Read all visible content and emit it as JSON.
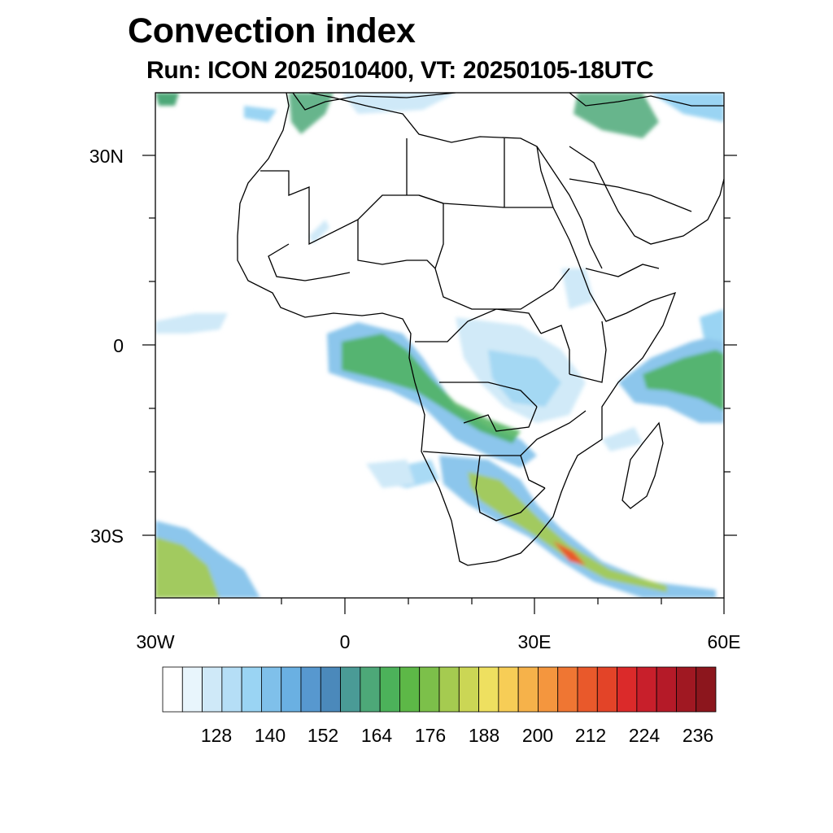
{
  "title": "Convection index",
  "subtitle": "Run: ICON 2025010400,  VT: 20250105-18UTC",
  "map": {
    "region": "Africa",
    "lon_range": [
      -30,
      60
    ],
    "lat_range": [
      -40,
      40
    ],
    "lat_ticks": [
      {
        "value": 30,
        "label": "30N"
      },
      {
        "value": 0,
        "label": "0"
      },
      {
        "value": -30,
        "label": "30S"
      }
    ],
    "lon_ticks": [
      {
        "value": -30,
        "label": "30W"
      },
      {
        "value": 0,
        "label": "0"
      },
      {
        "value": 30,
        "label": "30E"
      },
      {
        "value": 60,
        "label": "60E"
      }
    ]
  },
  "colorbar": {
    "labels": [
      "128",
      "140",
      "152",
      "164",
      "176",
      "188",
      "200",
      "212",
      "224",
      "236"
    ],
    "colors": [
      "#ffffff",
      "#e8f5fc",
      "#cfe9f8",
      "#b5def6",
      "#9ad4f3",
      "#7fc0ea",
      "#6ab0e2",
      "#5798cf",
      "#4b89bb",
      "#4a9b96",
      "#4da878",
      "#4cb25a",
      "#5db847",
      "#7cc04a",
      "#a5cb50",
      "#cbd655",
      "#eee060",
      "#f7cd56",
      "#f6b24a",
      "#f4963e",
      "#ef7633",
      "#e9592b",
      "#e34428",
      "#db2a2a",
      "#c81f2b",
      "#b51a28",
      "#a01822",
      "#8c161d"
    ]
  }
}
